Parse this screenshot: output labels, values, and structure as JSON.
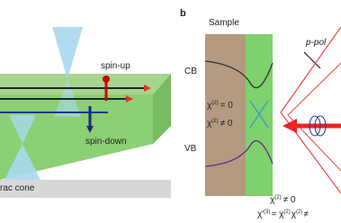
{
  "panel_a": {
    "labels": {
      "spin_up": "spin-up",
      "spin_down": "spin-down",
      "cone": "rac cone"
    }
  },
  "panel_b": {
    "letter": "b",
    "sample": "Sample",
    "polarization": "p-pol",
    "cb": "CB",
    "vb": "VB",
    "chi_bulk": {
      "base": "χ",
      "sup": "(2)",
      "rest": "= 0"
    },
    "chi_surface": {
      "base": "χ",
      "sup": "(2)",
      "rest": "≠ 0"
    },
    "footer": {
      "line1": {
        "base": "χ",
        "sup": "(2)",
        "rest": "≠ 0"
      },
      "line2": {
        "base": "χ'",
        "sup": "(3)",
        "mid": "= χ",
        "sup2": "(2)",
        "mid2": "χ",
        "sup3": "(2)",
        "rest": "≠"
      }
    }
  }
}
